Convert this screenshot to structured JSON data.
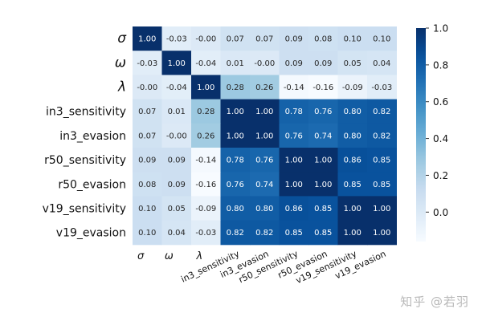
{
  "chart_data": {
    "type": "heatmap",
    "rows": [
      "σ",
      "ω",
      "λ",
      "in3_sensitivity",
      "in3_evasion",
      "r50_sensitivity",
      "r50_evasion",
      "v19_sensitivity",
      "v19_evasion"
    ],
    "columns": [
      "σ",
      "ω",
      "λ",
      "in3_sensitivity",
      "in3_evasion",
      "r50_sensitivity",
      "r50_evasion",
      "v19_sensitivity",
      "v19_evasion"
    ],
    "values": [
      [
        1.0,
        -0.03,
        -0.0,
        0.07,
        0.07,
        0.09,
        0.08,
        0.1,
        0.1
      ],
      [
        -0.03,
        1.0,
        -0.04,
        0.01,
        -0.0,
        0.09,
        0.09,
        0.05,
        0.04
      ],
      [
        -0.0,
        -0.04,
        1.0,
        0.28,
        0.26,
        -0.14,
        -0.16,
        -0.09,
        -0.03
      ],
      [
        0.07,
        0.01,
        0.28,
        1.0,
        1.0,
        0.78,
        0.76,
        0.8,
        0.82
      ],
      [
        0.07,
        -0.0,
        0.26,
        1.0,
        1.0,
        0.76,
        0.74,
        0.8,
        0.82
      ],
      [
        0.09,
        0.09,
        -0.14,
        0.78,
        0.76,
        1.0,
        1.0,
        0.86,
        0.85
      ],
      [
        0.08,
        0.09,
        -0.16,
        0.76,
        0.74,
        1.0,
        1.0,
        0.85,
        0.85
      ],
      [
        0.1,
        0.05,
        -0.09,
        0.8,
        0.8,
        0.86,
        0.85,
        1.0,
        1.0
      ],
      [
        0.1,
        0.04,
        -0.03,
        0.82,
        0.82,
        0.85,
        0.85,
        1.0,
        1.0
      ]
    ],
    "value_labels": [
      [
        "1.00",
        "-0.03",
        "-0.00",
        "0.07",
        "0.07",
        "0.09",
        "0.08",
        "0.10",
        "0.10"
      ],
      [
        "-0.03",
        "1.00",
        "-0.04",
        "0.01",
        "-0.00",
        "0.09",
        "0.09",
        "0.05",
        "0.04"
      ],
      [
        "-0.00",
        "-0.04",
        "1.00",
        "0.28",
        "0.26",
        "-0.14",
        "-0.16",
        "-0.09",
        "-0.03"
      ],
      [
        "0.07",
        "0.01",
        "0.28",
        "1.00",
        "1.00",
        "0.78",
        "0.76",
        "0.80",
        "0.82"
      ],
      [
        "0.07",
        "-0.00",
        "0.26",
        "1.00",
        "1.00",
        "0.76",
        "0.74",
        "0.80",
        "0.82"
      ],
      [
        "0.09",
        "0.09",
        "-0.14",
        "0.78",
        "0.76",
        "1.00",
        "1.00",
        "0.86",
        "0.85"
      ],
      [
        "0.08",
        "0.09",
        "-0.16",
        "0.76",
        "0.74",
        "1.00",
        "1.00",
        "0.85",
        "0.85"
      ],
      [
        "0.10",
        "0.05",
        "-0.09",
        "0.80",
        "0.80",
        "0.86",
        "0.85",
        "1.00",
        "1.00"
      ],
      [
        "0.10",
        "0.04",
        "-0.03",
        "0.82",
        "0.82",
        "0.85",
        "0.85",
        "1.00",
        "1.00"
      ]
    ],
    "colorbar": {
      "min": -0.16,
      "max": 1.0,
      "ticks": [
        0.0,
        0.2,
        0.4,
        0.6,
        0.8,
        1.0
      ],
      "tick_labels": [
        "0.0",
        "0.2",
        "0.4",
        "0.6",
        "0.8",
        "1.0"
      ],
      "colormap": "Blues"
    }
  },
  "watermark": "知乎 @若羽"
}
